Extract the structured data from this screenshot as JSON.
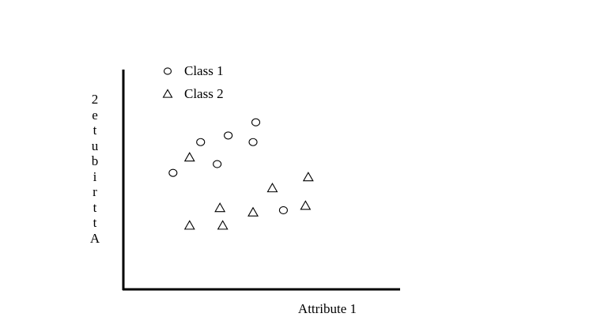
{
  "chart_data": {
    "type": "scatter",
    "title": "",
    "xlabel": "Attribute 1",
    "ylabel": "Attribute 2",
    "xlim": [
      0,
      100
    ],
    "ylim": [
      0,
      100
    ],
    "grid": false,
    "ticks": false,
    "legend_position": "top-left",
    "series": [
      {
        "name": "Class 1",
        "marker": "circle",
        "points": [
          [
            18,
            53
          ],
          [
            28,
            67
          ],
          [
            38,
            70
          ],
          [
            48,
            76
          ],
          [
            47,
            67
          ],
          [
            34,
            57
          ],
          [
            58,
            36
          ]
        ]
      },
      {
        "name": "Class 2",
        "marker": "triangle",
        "points": [
          [
            24,
            60
          ],
          [
            35,
            37
          ],
          [
            24,
            29
          ],
          [
            36,
            29
          ],
          [
            47,
            35
          ],
          [
            54,
            46
          ],
          [
            67,
            51
          ],
          [
            66,
            38
          ]
        ]
      }
    ]
  }
}
